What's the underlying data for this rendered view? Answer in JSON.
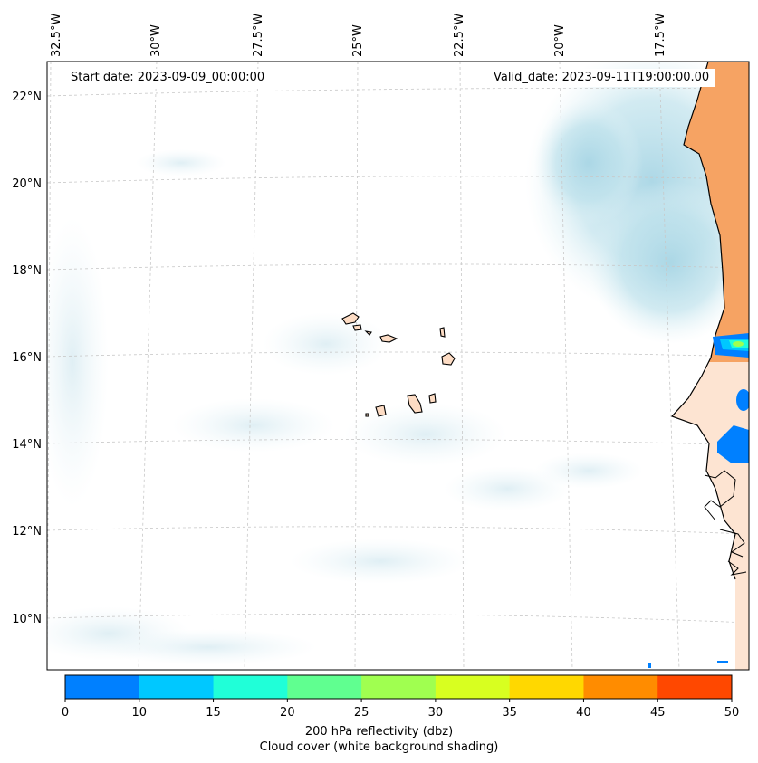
{
  "map": {
    "lon_labels": [
      "32.5°W",
      "30°W",
      "27.5°W",
      "25°W",
      "22.5°W",
      "20°W",
      "17.5°W"
    ],
    "lat_labels": [
      "22°N",
      "20°N",
      "18°N",
      "16°N",
      "14°N",
      "12°N",
      "10°N"
    ],
    "start_date": "Start date: 2023-09-09_00:00:00",
    "valid_date": "Valid_date: 2023-09-11T19:00:00.00",
    "colors": {
      "cloud": "#add8e6",
      "land_warm": "#f4a460",
      "coast": "#000000",
      "grid": "#bfbfbf"
    }
  },
  "colorbar": {
    "ticks": [
      "0",
      "10",
      "15",
      "20",
      "25",
      "30",
      "35",
      "40",
      "45",
      "50"
    ],
    "colors": [
      "#0080ff",
      "#00c8ff",
      "#20ffd8",
      "#60ff90",
      "#a0ff50",
      "#d8ff20",
      "#ffd800",
      "#ff8c00",
      "#ff4800"
    ],
    "label_line1": "200 hPa reflectivity (dbz)",
    "label_line2": "Cloud cover (white background shading)"
  }
}
